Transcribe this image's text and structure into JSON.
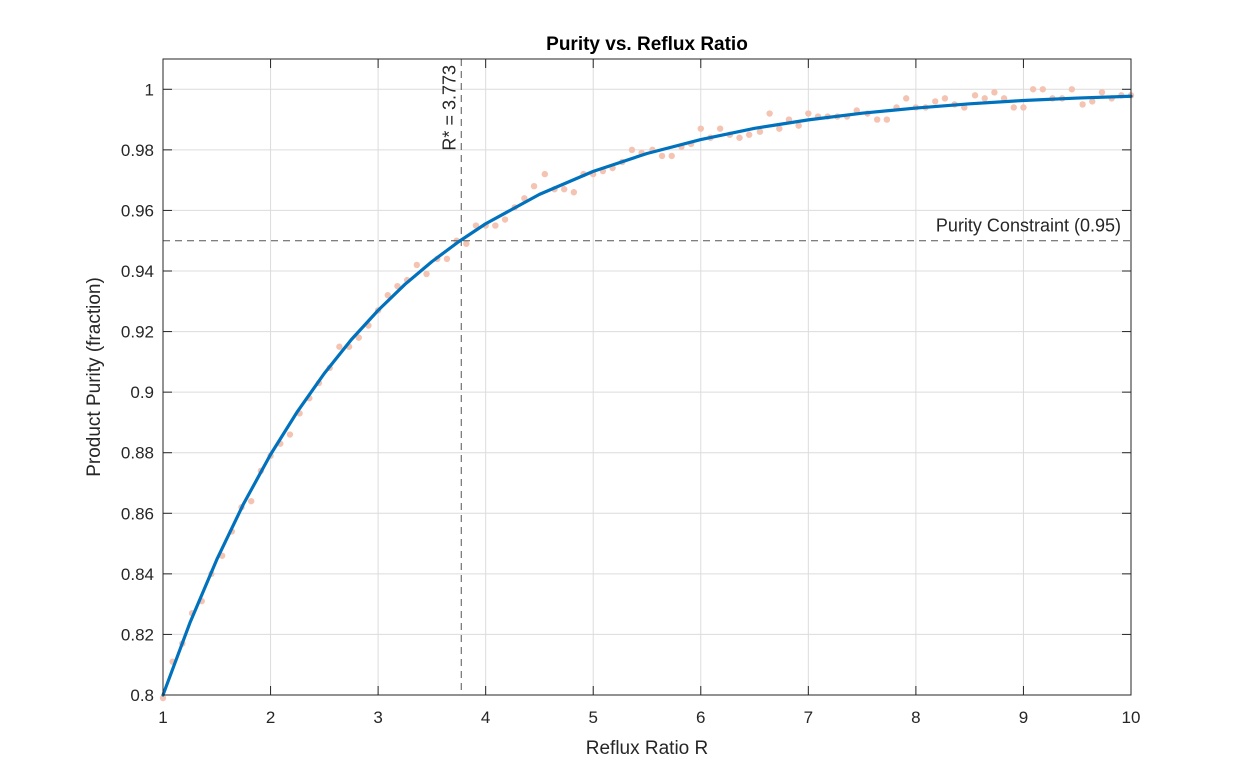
{
  "chart_data": {
    "type": "scatter",
    "title": "Purity vs. Reflux Ratio",
    "xlabel": "Reflux Ratio R",
    "ylabel": "Product Purity (fraction)",
    "xlim": [
      1,
      10
    ],
    "ylim": [
      0.8,
      1.01
    ],
    "xticks": [
      1,
      2,
      3,
      4,
      5,
      6,
      7,
      8,
      9,
      10
    ],
    "yticks": [
      0.8,
      0.82,
      0.84,
      0.86,
      0.88,
      0.9,
      0.92,
      0.94,
      0.96,
      0.98,
      1
    ],
    "ytick_labels": [
      "0.8",
      "0.82",
      "0.84",
      "0.86",
      "0.88",
      "0.9",
      "0.92",
      "0.94",
      "0.96",
      "0.98",
      "1"
    ],
    "grid": true,
    "colors": {
      "fit": "#0072BD",
      "points": "#F4C3B2",
      "reference": "#555555"
    },
    "series": [
      {
        "kind": "scatter",
        "x": [
          1.0,
          1.09,
          1.18,
          1.27,
          1.36,
          1.45,
          1.55,
          1.64,
          1.73,
          1.82,
          1.91,
          2.0,
          2.09,
          2.18,
          2.27,
          2.36,
          2.45,
          2.55,
          2.64,
          2.73,
          2.82,
          2.91,
          3.0,
          3.09,
          3.18,
          3.27,
          3.36,
          3.45,
          3.55,
          3.64,
          3.73,
          3.82,
          3.91,
          4.0,
          4.09,
          4.18,
          4.27,
          4.36,
          4.45,
          4.55,
          4.64,
          4.73,
          4.82,
          4.91,
          5.0,
          5.09,
          5.18,
          5.27,
          5.36,
          5.45,
          5.55,
          5.64,
          5.73,
          5.82,
          5.91,
          6.0,
          6.09,
          6.18,
          6.27,
          6.36,
          6.45,
          6.55,
          6.64,
          6.73,
          6.82,
          6.91,
          7.0,
          7.09,
          7.18,
          7.27,
          7.36,
          7.45,
          7.55,
          7.64,
          7.73,
          7.82,
          7.91,
          8.0,
          8.09,
          8.18,
          8.27,
          8.36,
          8.45,
          8.55,
          8.64,
          8.73,
          8.82,
          8.91,
          9.0,
          9.09,
          9.18,
          9.27,
          9.36,
          9.45,
          9.55,
          9.64,
          9.73,
          9.82,
          9.91,
          10.0
        ],
        "y": [
          0.799,
          0.811,
          0.817,
          0.827,
          0.831,
          0.84,
          0.846,
          0.854,
          0.862,
          0.864,
          0.874,
          0.879,
          0.883,
          0.886,
          0.893,
          0.898,
          0.903,
          0.908,
          0.915,
          0.915,
          0.918,
          0.922,
          0.927,
          0.932,
          0.935,
          0.937,
          0.942,
          0.939,
          0.944,
          0.944,
          0.95,
          0.949,
          0.955,
          0.955,
          0.955,
          0.957,
          0.961,
          0.964,
          0.968,
          0.972,
          0.967,
          0.967,
          0.966,
          0.972,
          0.972,
          0.973,
          0.974,
          0.976,
          0.98,
          0.979,
          0.98,
          0.978,
          0.978,
          0.981,
          0.982,
          0.987,
          0.984,
          0.987,
          0.985,
          0.984,
          0.985,
          0.986,
          0.992,
          0.987,
          0.99,
          0.988,
          0.992,
          0.991,
          0.991,
          0.991,
          0.991,
          0.993,
          0.992,
          0.99,
          0.99,
          0.994,
          0.997,
          0.994,
          0.994,
          0.996,
          0.997,
          0.995,
          0.994,
          0.998,
          0.997,
          0.999,
          0.997,
          0.994,
          0.994,
          1.0,
          1.0,
          0.997,
          0.997,
          1.0,
          0.995,
          0.996,
          0.999,
          0.997,
          0.998,
          0.998
        ]
      },
      {
        "kind": "line",
        "x": [
          1.0,
          1.25,
          1.5,
          1.75,
          2.0,
          2.25,
          2.5,
          2.75,
          3.0,
          3.25,
          3.5,
          3.75,
          4.0,
          4.5,
          5.0,
          5.5,
          6.0,
          6.5,
          7.0,
          7.5,
          8.0,
          8.5,
          9.0,
          9.5,
          10.0
        ],
        "y": [
          0.8,
          0.8238,
          0.8447,
          0.8632,
          0.8794,
          0.8936,
          0.9062,
          0.9173,
          0.927,
          0.9356,
          0.9431,
          0.9497,
          0.9556,
          0.9653,
          0.9729,
          0.9788,
          0.9834,
          0.9871,
          0.9899,
          0.9921,
          0.9938,
          0.9952,
          0.9963,
          0.9971,
          0.9977
        ]
      }
    ],
    "reference_lines": [
      {
        "orientation": "horizontal",
        "value": 0.95,
        "label": "Purity Constraint (0.95)"
      },
      {
        "orientation": "vertical",
        "value": 3.773,
        "label": "R* = 3.773"
      }
    ]
  }
}
